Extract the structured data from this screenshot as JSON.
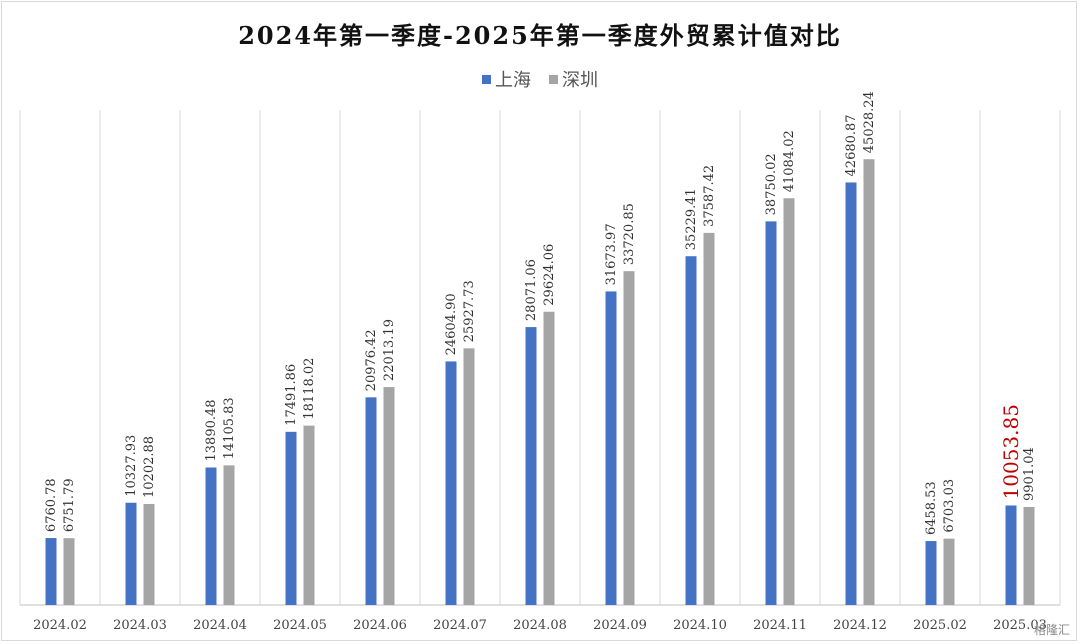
{
  "chart_data": {
    "type": "bar",
    "title": "2024年第一季度-2025年第一季度外贸累计值对比",
    "categories": [
      "2024.02",
      "2024.03",
      "2024.04",
      "2024.05",
      "2024.06",
      "2024.07",
      "2024.08",
      "2024.09",
      "2024.10",
      "2024.11",
      "2024.12",
      "2025.02",
      "2025.03"
    ],
    "series": [
      {
        "name": "上海",
        "color": "#4472c4",
        "values": [
          6760.78,
          10327.93,
          13890.48,
          17491.86,
          20976.42,
          24604.9,
          28071.06,
          31673.97,
          35229.41,
          38750.02,
          42680.87,
          6458.53,
          10053.85
        ]
      },
      {
        "name": "深圳",
        "color": "#a5a5a5",
        "values": [
          6751.79,
          10202.88,
          14105.83,
          18118.02,
          22013.19,
          25927.73,
          29624.06,
          33720.85,
          37587.42,
          41084.02,
          45028.24,
          6703.03,
          9901.04
        ]
      }
    ],
    "data_labels": [
      [
        "6760.78",
        "10327.93",
        "13890.48",
        "17491.86",
        "20976.42",
        "24604.90",
        "28071.06",
        "31673.97",
        "35229.41",
        "38750.02",
        "42680.87",
        "6458.53",
        "10053.85"
      ],
      [
        "6751.79",
        "10202.88",
        "14105.83",
        "18118.02",
        "22013.19",
        "25927.73",
        "29624.06",
        "33720.85",
        "37587.42",
        "41084.02",
        "45028.24",
        "6703.03",
        "9901.04"
      ]
    ],
    "highlight": {
      "series": 0,
      "index": 12,
      "color": "#c00000"
    },
    "ylim": [
      0,
      50000
    ],
    "grid": "vertical-category-separators",
    "legend": "top-center",
    "xlabel": "",
    "ylabel": ""
  },
  "watermark": "格隆汇"
}
